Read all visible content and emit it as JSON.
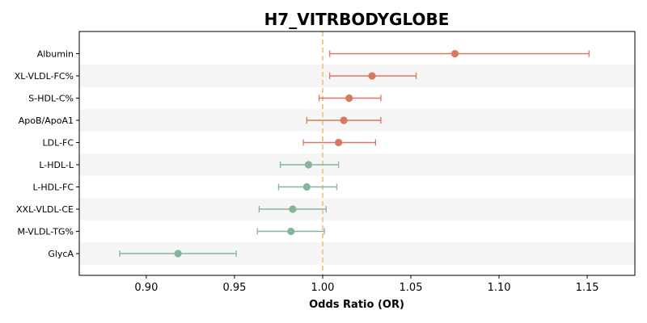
{
  "chart_data": {
    "type": "forest",
    "title": "H7_VITRBODYGLOBE",
    "xlabel": "Odds Ratio (OR)",
    "ylabel": "",
    "xlim": [
      0.862,
      1.177
    ],
    "x_ticks": [
      "0.90",
      "0.95",
      "1.00",
      "1.05",
      "1.10",
      "1.15"
    ],
    "reference_line": 1.0,
    "colors": {
      "above": "#d9785f",
      "below": "#86b49b",
      "reference": "#e8c07a",
      "band": "#f5f5f5"
    },
    "rows": [
      {
        "label": "Albumin",
        "or": 1.075,
        "ci_low": 1.004,
        "ci_high": 1.151
      },
      {
        "label": "XL-VLDL-FC%",
        "or": 1.028,
        "ci_low": 1.004,
        "ci_high": 1.053
      },
      {
        "label": "S-HDL-C%",
        "or": 1.015,
        "ci_low": 0.998,
        "ci_high": 1.033
      },
      {
        "label": "ApoB/ApoA1",
        "or": 1.012,
        "ci_low": 0.991,
        "ci_high": 1.033
      },
      {
        "label": "LDL-FC",
        "or": 1.009,
        "ci_low": 0.989,
        "ci_high": 1.03
      },
      {
        "label": "L-HDL-L",
        "or": 0.992,
        "ci_low": 0.976,
        "ci_high": 1.009
      },
      {
        "label": "L-HDL-FC",
        "or": 0.991,
        "ci_low": 0.975,
        "ci_high": 1.008
      },
      {
        "label": "XXL-VLDL-CE",
        "or": 0.983,
        "ci_low": 0.964,
        "ci_high": 1.002
      },
      {
        "label": "M-VLDL-TG%",
        "or": 0.982,
        "ci_low": 0.963,
        "ci_high": 1.001
      },
      {
        "label": "GlycA",
        "or": 0.918,
        "ci_low": 0.885,
        "ci_high": 0.951
      }
    ]
  }
}
